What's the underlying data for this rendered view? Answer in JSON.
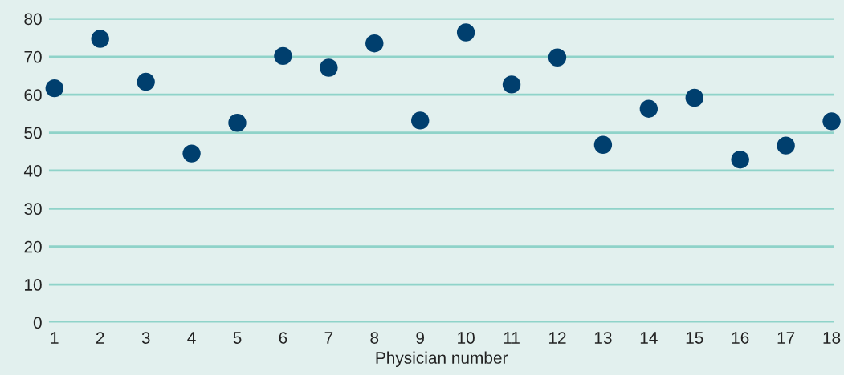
{
  "chart_data": {
    "type": "scatter",
    "xlabel": "Physician number",
    "categories": [
      "1",
      "2",
      "3",
      "4",
      "5",
      "6",
      "7",
      "8",
      "9",
      "10",
      "11",
      "12",
      "13",
      "14",
      "15",
      "16",
      "17",
      "18"
    ],
    "values": [
      61.7,
      74.7,
      63.4,
      44.5,
      52.6,
      70.2,
      67.1,
      73.5,
      53.2,
      76.4,
      62.7,
      69.8,
      46.8,
      56.3,
      59.2,
      42.9,
      46.6,
      53.0
    ],
    "color": "#003f6e",
    "marker": "circle",
    "ylim": [
      0,
      80
    ],
    "yticks": [
      0,
      10,
      20,
      30,
      40,
      50,
      60,
      70,
      80
    ],
    "grid": "y",
    "legend": false
  }
}
